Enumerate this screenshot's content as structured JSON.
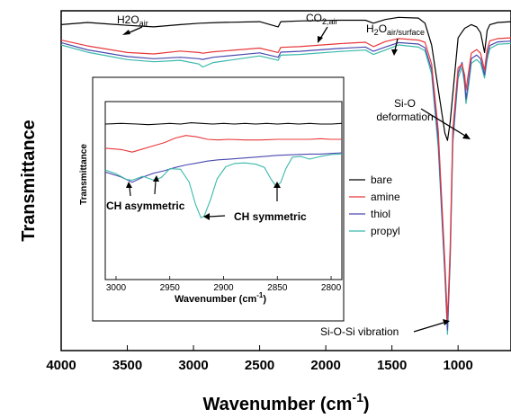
{
  "chart_data": [
    {
      "type": "line",
      "xlabel": "Wavenumber (cm",
      "xlabel_sup": "-1",
      "xlabel_end": ")",
      "ylabel": "Transmittance",
      "xlim": [
        4000,
        600
      ],
      "x_reversed": true,
      "yticks_shown": false,
      "xticks": [
        4000,
        3500,
        3000,
        2500,
        2000,
        1500,
        1000
      ],
      "xtick_labels": [
        "4000",
        "3500",
        "3000",
        "2500",
        "2000",
        "1500",
        "1000"
      ],
      "legend": [
        "bare",
        "amine",
        "thiol",
        "propyl"
      ],
      "legend_location": "right",
      "colors": {
        "bare": "#000000",
        "amine": "#e8373a",
        "thiol": "#4a49b0",
        "propyl": "#3ab9aa"
      },
      "series": [
        {
          "name": "bare",
          "x": [
            4000,
            3800,
            3500,
            3300,
            3100,
            2950,
            2800,
            2500,
            2360,
            2340,
            2200,
            1900,
            1700,
            1640,
            1550,
            1450,
            1300,
            1250,
            1200,
            1150,
            1100,
            1080,
            1060,
            1000,
            970,
            950,
            900,
            860,
            830,
            800,
            780,
            760,
            700,
            600
          ],
          "y": [
            1.3,
            1.6,
            1.2,
            1.0,
            1.3,
            1.5,
            1.6,
            1.7,
            1.0,
            1.7,
            1.8,
            1.9,
            1.9,
            1.5,
            2.0,
            2.3,
            2.2,
            1.5,
            -1.5,
            -7.5,
            -13.5,
            -14.5,
            -12.0,
            -0.5,
            0.3,
            0.8,
            1.3,
            1.0,
            0.2,
            -2.5,
            0.5,
            1.3,
            1.6,
            1.7
          ]
        },
        {
          "name": "amine",
          "x": [
            4000,
            3800,
            3500,
            3300,
            3100,
            2960,
            2930,
            2850,
            2500,
            2360,
            2340,
            2200,
            1900,
            1700,
            1640,
            1550,
            1450,
            1300,
            1250,
            1200,
            1150,
            1100,
            1080,
            1060,
            1040,
            1000,
            970,
            950,
            940,
            920,
            900,
            860,
            830,
            800,
            780,
            760,
            700,
            600
          ],
          "y": [
            0.3,
            -0.5,
            -1.4,
            -1.6,
            -1.2,
            -1.4,
            -1.5,
            -1.3,
            -0.8,
            -1.4,
            -0.7,
            -0.6,
            -0.2,
            0.0,
            -0.6,
            0.1,
            0.5,
            0.3,
            0.0,
            -3.0,
            -12.0,
            -30.0,
            -38.0,
            -28.0,
            -12.0,
            -3.5,
            -3.0,
            -4.5,
            -6.5,
            -4.0,
            -1.5,
            -1.0,
            -1.5,
            -3.8,
            -1.0,
            0.2,
            0.5,
            0.6
          ]
        },
        {
          "name": "thiol",
          "x": [
            4000,
            3800,
            3500,
            3300,
            3100,
            2960,
            2930,
            2850,
            2500,
            2360,
            2340,
            2200,
            1900,
            1700,
            1640,
            1550,
            1450,
            1300,
            1250,
            1200,
            1150,
            1100,
            1080,
            1060,
            1040,
            1000,
            970,
            950,
            940,
            920,
            900,
            860,
            830,
            800,
            780,
            760,
            700,
            600
          ],
          "y": [
            0.2,
            -0.8,
            -1.7,
            -2.0,
            -1.8,
            -2.0,
            -2.1,
            -1.8,
            -1.2,
            -1.8,
            -1.1,
            -1.0,
            -0.6,
            -0.4,
            -1.0,
            -0.4,
            0.2,
            0.0,
            -0.5,
            -3.5,
            -13.0,
            -31.0,
            -39.0,
            -29.0,
            -13.0,
            -4.0,
            -2.5,
            -5.0,
            -7.5,
            -5.0,
            -2.0,
            -1.5,
            -2.0,
            -4.2,
            -1.5,
            -0.2,
            0.3,
            0.4
          ]
        },
        {
          "name": "propyl",
          "x": [
            4000,
            3800,
            3500,
            3300,
            3100,
            2960,
            2930,
            2850,
            2500,
            2360,
            2340,
            2200,
            1900,
            1700,
            1640,
            1550,
            1450,
            1300,
            1250,
            1200,
            1150,
            1100,
            1080,
            1060,
            1040,
            1000,
            970,
            950,
            940,
            920,
            900,
            860,
            830,
            800,
            780,
            760,
            700,
            600
          ],
          "y": [
            0.0,
            -1.0,
            -2.0,
            -2.3,
            -2.1,
            -2.6,
            -3.0,
            -2.4,
            -1.5,
            -2.1,
            -1.4,
            -1.3,
            -0.9,
            -0.7,
            -1.3,
            -0.7,
            0.0,
            -0.3,
            -0.8,
            -4.0,
            -14.0,
            -31.5,
            -39.5,
            -29.5,
            -13.5,
            -4.5,
            -3.0,
            -5.5,
            -8.0,
            -5.5,
            -2.5,
            -2.0,
            -2.5,
            -4.5,
            -2.0,
            -0.5,
            0.1,
            0.2
          ]
        }
      ],
      "annotations": [
        {
          "text": "H2O",
          "sub": "air",
          "target_x": 3480
        },
        {
          "text": "CO",
          "sub": "2,air",
          "target_x": 2350
        },
        {
          "text": "H",
          "sub2": "2",
          "text2": "O",
          "sub": "air/surface",
          "target_x": 1640
        },
        {
          "text": "Si-O",
          "line2": "deformation",
          "target_x": 950
        },
        {
          "text": "Si-O-Si  vibration",
          "target_x": 1080
        }
      ]
    },
    {
      "type": "line",
      "inset": true,
      "xlabel": "Wavenumber (cm",
      "xlabel_sup": "-1",
      "xlabel_end": ")",
      "ylabel": "Transmittance",
      "xlim": [
        3010,
        2790
      ],
      "x_reversed": true,
      "xticks": [
        3000,
        2950,
        2900,
        2850,
        2800
      ],
      "xtick_labels": [
        "3000",
        "2950",
        "2900",
        "2850",
        "2800"
      ],
      "series": [
        {
          "name": "bare",
          "x": [
            3010,
            2995,
            2980,
            2970,
            2960,
            2950,
            2940,
            2930,
            2920,
            2910,
            2900,
            2890,
            2880,
            2870,
            2860,
            2850,
            2840,
            2830,
            2820,
            2810,
            2800,
            2790
          ],
          "y": [
            0.0,
            0.1,
            0.0,
            -0.1,
            0.0,
            0.1,
            0.0,
            0.2,
            0.1,
            0.0,
            0.1,
            0.0,
            0.1,
            0.0,
            0.1,
            0.0,
            0.1,
            0.0,
            0.1,
            0.0,
            0.0,
            0.1
          ]
        },
        {
          "name": "amine",
          "x": [
            3010,
            2995,
            2985,
            2975,
            2965,
            2955,
            2945,
            2935,
            2925,
            2915,
            2905,
            2895,
            2880,
            2865,
            2850,
            2835,
            2820,
            2810,
            2800,
            2790
          ],
          "y": [
            -1.4,
            -1.6,
            -2.0,
            -1.5,
            -1.0,
            -0.5,
            0.2,
            0.6,
            0.4,
            0.0,
            -0.1,
            0.0,
            -0.1,
            -0.1,
            0.0,
            0.0,
            0.0,
            0.1,
            0.0,
            0.0
          ]
        },
        {
          "name": "thiol",
          "x": [
            3010,
            2995,
            2985,
            2975,
            2965,
            2955,
            2945,
            2935,
            2925,
            2915,
            2905,
            2895,
            2880,
            2865,
            2850,
            2835,
            2820,
            2810,
            2800,
            2790
          ],
          "y": [
            -3.0,
            -3.8,
            -4.6,
            -3.8,
            -3.2,
            -2.8,
            -2.3,
            -1.9,
            -1.6,
            -1.3,
            -1.1,
            -1.0,
            -0.8,
            -0.6,
            -0.4,
            -0.3,
            -0.2,
            -0.2,
            -0.1,
            0.0
          ]
        },
        {
          "name": "propyl",
          "x": [
            3010,
            3000,
            2990,
            2985,
            2975,
            2965,
            2958,
            2950,
            2940,
            2932,
            2926,
            2921,
            2918,
            2912,
            2906,
            2898,
            2890,
            2880,
            2870,
            2862,
            2856,
            2851,
            2847,
            2842,
            2836,
            2828,
            2820,
            2810,
            2800,
            2790
          ],
          "y": [
            -2.4,
            -3.0,
            -3.9,
            -4.0,
            -3.4,
            -4.0,
            -3.6,
            -2.2,
            -2.3,
            -4.3,
            -7.8,
            -9.9,
            -9.6,
            -7.0,
            -3.8,
            -1.9,
            -1.4,
            -1.3,
            -1.5,
            -2.0,
            -3.8,
            -5.0,
            -4.4,
            -2.2,
            -0.4,
            -0.3,
            -0.7,
            -0.3,
            0.0,
            0.1
          ]
        }
      ],
      "annotations": [
        {
          "text": "CH asymmetric"
        },
        {
          "text": "CH symmetric"
        }
      ]
    }
  ]
}
